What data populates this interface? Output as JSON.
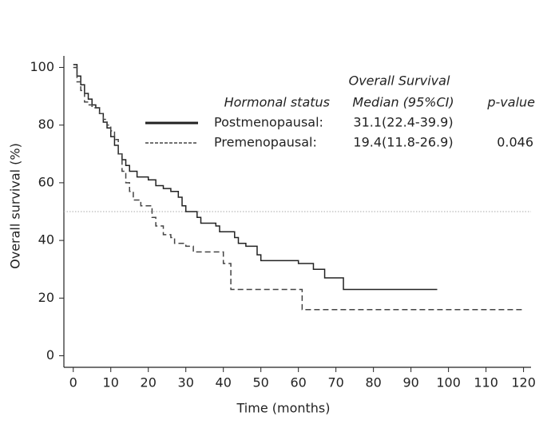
{
  "chart_data": {
    "type": "step",
    "xlabel": "Time (months)",
    "ylabel": "Overall survival (%)",
    "xlim": [
      -2.5,
      122
    ],
    "ylim": [
      -4,
      104
    ],
    "xticks": [
      0,
      10,
      20,
      30,
      40,
      50,
      60,
      70,
      80,
      90,
      100,
      110,
      120
    ],
    "yticks": [
      0,
      20,
      40,
      60,
      80,
      100
    ],
    "reference_line": 50,
    "legend_headers": {
      "group": "Hormonal status",
      "median_title": "Overall Survival",
      "median": "Median (95%CI)",
      "p": "p-value"
    },
    "series": [
      {
        "name": "Postmenopausal:",
        "color": "#222222",
        "dash": false,
        "median": "31.1(22.4-39.9)",
        "p": null,
        "x": [
          0,
          1,
          2,
          3,
          4,
          5,
          6,
          7,
          8,
          9,
          10,
          11,
          12,
          13,
          14,
          15,
          17,
          20,
          22,
          24,
          26,
          28,
          29,
          30,
          33,
          34,
          38,
          39,
          43,
          44,
          46,
          49,
          50,
          60,
          64,
          67,
          72,
          97
        ],
        "values": [
          101,
          97,
          94,
          91,
          89,
          87,
          86,
          84,
          81,
          79,
          76,
          73,
          70,
          68,
          66,
          64,
          62,
          61,
          59,
          58,
          57,
          55,
          52,
          50,
          48,
          46,
          45,
          43,
          41,
          39,
          38,
          35,
          33,
          32,
          30,
          27,
          23,
          23
        ]
      },
      {
        "name": "Premenopausal:",
        "color": "#444444",
        "dash": true,
        "median": "19.4(11.8-26.9)",
        "p": "0.046",
        "x": [
          0,
          1,
          2,
          3,
          4,
          5,
          7,
          8,
          9,
          10,
          11,
          12,
          13,
          14,
          15,
          16,
          18,
          21,
          22,
          24,
          26,
          27,
          30,
          32,
          40,
          42,
          60,
          61,
          120
        ],
        "values": [
          100,
          95,
          92,
          88,
          87,
          86,
          84,
          82,
          80,
          78,
          75,
          70,
          64,
          60,
          57,
          54,
          52,
          48,
          45,
          42,
          41,
          39,
          38,
          36,
          32,
          23,
          23,
          16,
          16
        ]
      }
    ]
  }
}
